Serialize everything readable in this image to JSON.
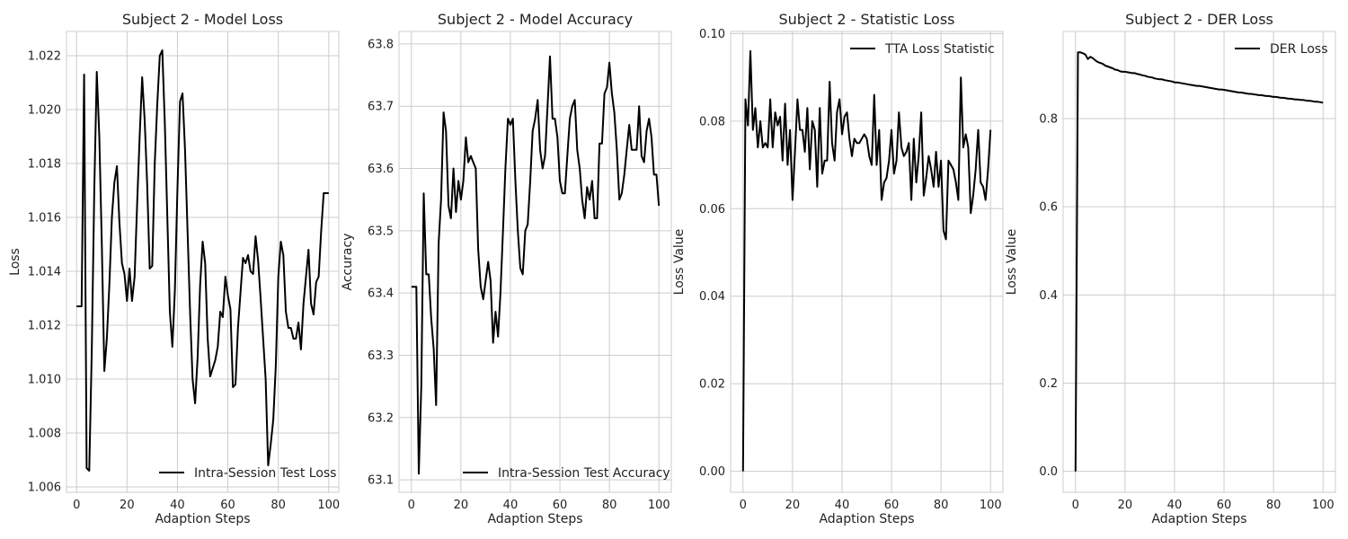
{
  "chart_data": [
    {
      "type": "line",
      "title": "Subject 2 - Model Loss",
      "xlabel": "Adaption Steps",
      "ylabel": "Loss",
      "xlim": [
        -4,
        104
      ],
      "ylim": [
        1.0058,
        1.0229
      ],
      "xticks": [
        0,
        20,
        40,
        60,
        80,
        100
      ],
      "yticks": [
        1.006,
        1.008,
        1.01,
        1.012,
        1.014,
        1.016,
        1.018,
        1.02,
        1.022
      ],
      "ytick_decimals": 3,
      "grid": true,
      "legend_position": "lower-right",
      "series": [
        {
          "name": "Intra-Session Test Loss",
          "color": "#000000",
          "x": [
            0,
            1,
            2,
            3,
            4,
            5,
            6,
            7,
            8,
            9,
            10,
            11,
            12,
            13,
            14,
            15,
            16,
            17,
            18,
            19,
            20,
            21,
            22,
            23,
            24,
            25,
            26,
            27,
            28,
            29,
            30,
            31,
            32,
            33,
            34,
            35,
            36,
            37,
            38,
            39,
            40,
            41,
            42,
            43,
            44,
            45,
            46,
            47,
            48,
            49,
            50,
            51,
            52,
            53,
            54,
            55,
            56,
            57,
            58,
            59,
            60,
            61,
            62,
            63,
            64,
            65,
            66,
            67,
            68,
            69,
            70,
            71,
            72,
            73,
            74,
            75,
            76,
            77,
            78,
            79,
            80,
            81,
            82,
            83,
            84,
            85,
            86,
            87,
            88,
            89,
            90,
            91,
            92,
            93,
            94,
            95,
            96,
            97,
            98,
            99,
            100
          ],
          "y": [
            1.0127,
            1.0127,
            1.0127,
            1.0213,
            1.0067,
            1.0066,
            1.011,
            1.017,
            1.0214,
            1.019,
            1.015,
            1.0103,
            1.0115,
            1.0135,
            1.016,
            1.0173,
            1.0179,
            1.0158,
            1.0143,
            1.0139,
            1.0129,
            1.0141,
            1.0129,
            1.0138,
            1.0165,
            1.019,
            1.0212,
            1.0196,
            1.0172,
            1.0141,
            1.0142,
            1.018,
            1.0202,
            1.022,
            1.0222,
            1.0195,
            1.016,
            1.0125,
            1.0112,
            1.0133,
            1.017,
            1.0203,
            1.0206,
            1.0185,
            1.0155,
            1.0125,
            1.01,
            1.0091,
            1.0108,
            1.0135,
            1.0151,
            1.0143,
            1.0115,
            1.0101,
            1.0104,
            1.0107,
            1.0112,
            1.0125,
            1.0123,
            1.0138,
            1.0131,
            1.0126,
            1.0097,
            1.0098,
            1.0119,
            1.0132,
            1.0145,
            1.0143,
            1.0146,
            1.014,
            1.0139,
            1.0153,
            1.0144,
            1.013,
            1.0115,
            1.01,
            1.0068,
            1.0076,
            1.0085,
            1.0105,
            1.0138,
            1.0151,
            1.0146,
            1.0125,
            1.0119,
            1.0119,
            1.0115,
            1.0115,
            1.0121,
            1.0111,
            1.0128,
            1.0138,
            1.0148,
            1.0128,
            1.0124,
            1.0136,
            1.0138,
            1.0155,
            1.0169,
            1.0169,
            1.0169
          ]
        }
      ]
    },
    {
      "type": "line",
      "title": "Subject 2 - Model Accuracy",
      "xlabel": "Adaption Steps",
      "ylabel": "Accuracy",
      "xlim": [
        -5,
        105
      ],
      "ylim": [
        63.08,
        63.82
      ],
      "xticks": [
        0,
        20,
        40,
        60,
        80,
        100
      ],
      "yticks": [
        63.1,
        63.2,
        63.3,
        63.4,
        63.5,
        63.6,
        63.7,
        63.8
      ],
      "ytick_decimals": 1,
      "grid": true,
      "legend_position": "lower-right",
      "series": [
        {
          "name": "Intra-Session Test Accuracy",
          "color": "#000000",
          "x": [
            0,
            1,
            2,
            3,
            4,
            5,
            6,
            7,
            8,
            9,
            10,
            11,
            12,
            13,
            14,
            15,
            16,
            17,
            18,
            19,
            20,
            21,
            22,
            23,
            24,
            25,
            26,
            27,
            28,
            29,
            30,
            31,
            32,
            33,
            34,
            35,
            36,
            37,
            38,
            39,
            40,
            41,
            42,
            43,
            44,
            45,
            46,
            47,
            48,
            49,
            50,
            51,
            52,
            53,
            54,
            55,
            56,
            57,
            58,
            59,
            60,
            61,
            62,
            63,
            64,
            65,
            66,
            67,
            68,
            69,
            70,
            71,
            72,
            73,
            74,
            75,
            76,
            77,
            78,
            79,
            80,
            81,
            82,
            83,
            84,
            85,
            86,
            87,
            88,
            89,
            90,
            91,
            92,
            93,
            94,
            95,
            96,
            97,
            98,
            99,
            100
          ],
          "y": [
            63.41,
            63.41,
            63.41,
            63.11,
            63.25,
            63.56,
            63.43,
            63.43,
            63.36,
            63.31,
            63.22,
            63.48,
            63.55,
            63.69,
            63.66,
            63.54,
            63.52,
            63.6,
            63.53,
            63.58,
            63.55,
            63.58,
            63.65,
            63.61,
            63.62,
            63.61,
            63.6,
            63.47,
            63.41,
            63.39,
            63.42,
            63.45,
            63.42,
            63.32,
            63.37,
            63.33,
            63.4,
            63.5,
            63.6,
            63.68,
            63.67,
            63.68,
            63.58,
            63.5,
            63.44,
            63.43,
            63.5,
            63.51,
            63.58,
            63.66,
            63.68,
            63.71,
            63.63,
            63.6,
            63.62,
            63.7,
            63.78,
            63.68,
            63.68,
            63.65,
            63.58,
            63.56,
            63.56,
            63.62,
            63.68,
            63.7,
            63.71,
            63.63,
            63.6,
            63.55,
            63.52,
            63.57,
            63.55,
            63.58,
            63.52,
            63.52,
            63.64,
            63.64,
            63.72,
            63.73,
            63.77,
            63.72,
            63.69,
            63.63,
            63.55,
            63.56,
            63.59,
            63.63,
            63.67,
            63.63,
            63.63,
            63.63,
            63.7,
            63.62,
            63.61,
            63.66,
            63.68,
            63.65,
            63.59,
            63.59,
            63.54
          ]
        }
      ]
    },
    {
      "type": "line",
      "title": "Subject 2 - Statistic Loss",
      "xlabel": "Adaption Steps",
      "ylabel": "Loss Value",
      "xlim": [
        -5,
        105
      ],
      "ylim": [
        -0.0048,
        0.1005
      ],
      "xticks": [
        0,
        20,
        40,
        60,
        80,
        100
      ],
      "yticks": [
        0.0,
        0.02,
        0.04,
        0.06,
        0.08,
        0.1
      ],
      "ytick_decimals": 2,
      "grid": true,
      "legend_position": "upper-right",
      "series": [
        {
          "name": "TTA Loss Statistic",
          "color": "#000000",
          "x": [
            0,
            1,
            2,
            3,
            4,
            5,
            6,
            7,
            8,
            9,
            10,
            11,
            12,
            13,
            14,
            15,
            16,
            17,
            18,
            19,
            20,
            21,
            22,
            23,
            24,
            25,
            26,
            27,
            28,
            29,
            30,
            31,
            32,
            33,
            34,
            35,
            36,
            37,
            38,
            39,
            40,
            41,
            42,
            43,
            44,
            45,
            46,
            47,
            48,
            49,
            50,
            51,
            52,
            53,
            54,
            55,
            56,
            57,
            58,
            59,
            60,
            61,
            62,
            63,
            64,
            65,
            66,
            67,
            68,
            69,
            70,
            71,
            72,
            73,
            74,
            75,
            76,
            77,
            78,
            79,
            80,
            81,
            82,
            83,
            84,
            85,
            86,
            87,
            88,
            89,
            90,
            91,
            92,
            93,
            94,
            95,
            96,
            97,
            98,
            99,
            100
          ],
          "y": [
            0.0,
            0.085,
            0.079,
            0.096,
            0.078,
            0.083,
            0.074,
            0.08,
            0.074,
            0.075,
            0.074,
            0.085,
            0.074,
            0.082,
            0.079,
            0.081,
            0.071,
            0.084,
            0.07,
            0.078,
            0.062,
            0.073,
            0.085,
            0.078,
            0.078,
            0.073,
            0.083,
            0.069,
            0.08,
            0.078,
            0.065,
            0.083,
            0.068,
            0.071,
            0.071,
            0.089,
            0.075,
            0.071,
            0.082,
            0.085,
            0.077,
            0.081,
            0.082,
            0.076,
            0.072,
            0.076,
            0.075,
            0.075,
            0.076,
            0.077,
            0.076,
            0.072,
            0.07,
            0.086,
            0.07,
            0.078,
            0.062,
            0.066,
            0.067,
            0.071,
            0.078,
            0.068,
            0.071,
            0.082,
            0.074,
            0.072,
            0.073,
            0.075,
            0.062,
            0.076,
            0.066,
            0.072,
            0.082,
            0.063,
            0.067,
            0.072,
            0.069,
            0.065,
            0.073,
            0.065,
            0.071,
            0.055,
            0.053,
            0.071,
            0.07,
            0.069,
            0.066,
            0.062,
            0.09,
            0.074,
            0.077,
            0.074,
            0.059,
            0.063,
            0.069,
            0.078,
            0.066,
            0.065,
            0.062,
            0.069,
            0.078
          ]
        }
      ]
    },
    {
      "type": "line",
      "title": "Subject 2 - DER Loss",
      "xlabel": "Adaption Steps",
      "ylabel": "Loss Value",
      "xlim": [
        -5,
        105
      ],
      "ylim": [
        -0.0475,
        0.9975
      ],
      "xticks": [
        0,
        20,
        40,
        60,
        80,
        100
      ],
      "yticks": [
        0.0,
        0.2,
        0.4,
        0.6,
        0.8
      ],
      "ytick_decimals": 1,
      "grid": true,
      "legend_position": "upper-right",
      "series": [
        {
          "name": "DER Loss",
          "color": "#000000",
          "x": [
            0,
            1,
            2,
            3,
            4,
            5,
            6,
            7,
            8,
            9,
            10,
            11,
            12,
            13,
            14,
            15,
            16,
            17,
            18,
            19,
            20,
            21,
            22,
            23,
            24,
            25,
            26,
            27,
            28,
            29,
            30,
            31,
            32,
            33,
            34,
            35,
            36,
            37,
            38,
            39,
            40,
            41,
            42,
            43,
            44,
            45,
            46,
            47,
            48,
            49,
            50,
            51,
            52,
            53,
            54,
            55,
            56,
            57,
            58,
            59,
            60,
            61,
            62,
            63,
            64,
            65,
            66,
            67,
            68,
            69,
            70,
            71,
            72,
            73,
            74,
            75,
            76,
            77,
            78,
            79,
            80,
            81,
            82,
            83,
            84,
            85,
            86,
            87,
            88,
            89,
            90,
            91,
            92,
            93,
            94,
            95,
            96,
            97,
            98,
            99,
            100
          ],
          "y": [
            0.0,
            0.95,
            0.95,
            0.948,
            0.945,
            0.935,
            0.94,
            0.937,
            0.932,
            0.928,
            0.926,
            0.924,
            0.92,
            0.918,
            0.916,
            0.914,
            0.911,
            0.91,
            0.907,
            0.906,
            0.906,
            0.905,
            0.904,
            0.903,
            0.903,
            0.901,
            0.9,
            0.898,
            0.897,
            0.895,
            0.894,
            0.893,
            0.891,
            0.89,
            0.889,
            0.889,
            0.887,
            0.886,
            0.885,
            0.884,
            0.882,
            0.882,
            0.881,
            0.88,
            0.879,
            0.878,
            0.877,
            0.876,
            0.875,
            0.874,
            0.874,
            0.873,
            0.872,
            0.871,
            0.87,
            0.869,
            0.868,
            0.867,
            0.866,
            0.866,
            0.865,
            0.864,
            0.863,
            0.862,
            0.861,
            0.86,
            0.859,
            0.859,
            0.858,
            0.857,
            0.856,
            0.856,
            0.855,
            0.854,
            0.853,
            0.853,
            0.852,
            0.851,
            0.851,
            0.85,
            0.849,
            0.849,
            0.848,
            0.847,
            0.847,
            0.846,
            0.845,
            0.845,
            0.844,
            0.843,
            0.843,
            0.842,
            0.842,
            0.841,
            0.84,
            0.84,
            0.839,
            0.838,
            0.838,
            0.837,
            0.836
          ]
        }
      ]
    }
  ]
}
